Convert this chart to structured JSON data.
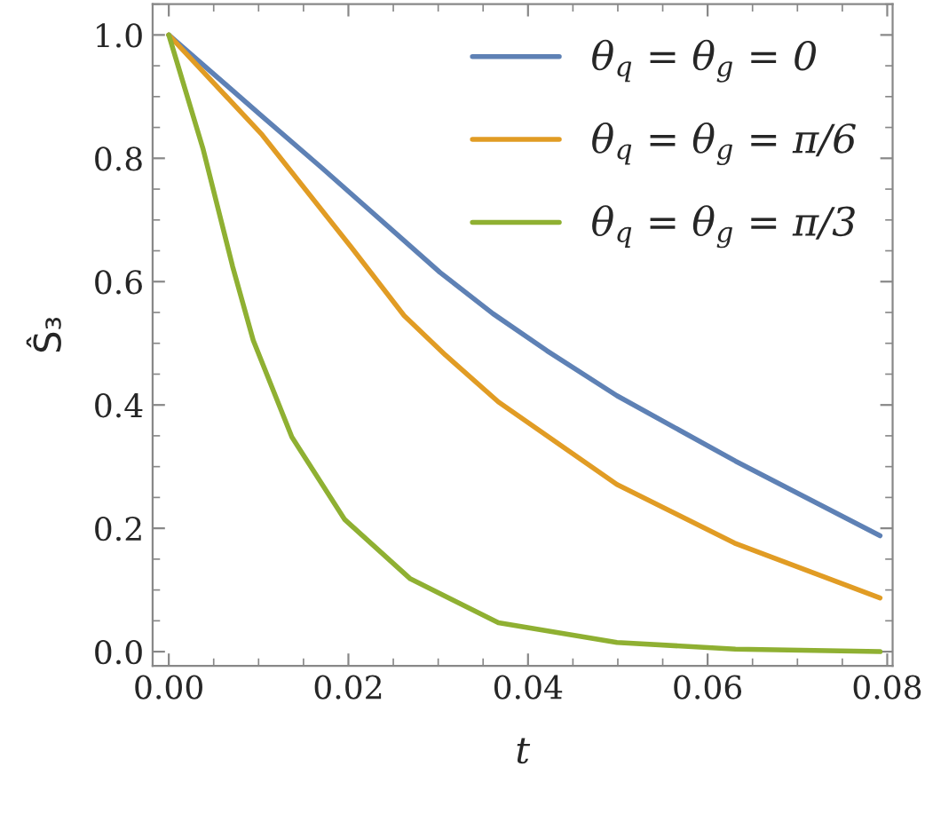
{
  "chart_data": {
    "type": "line",
    "xlabel": "t",
    "ylabel": "Ŝ₃",
    "xlim": [
      -0.0018,
      0.0806
    ],
    "ylim": [
      -0.023,
      1.05
    ],
    "xticks": [
      {
        "value": 0,
        "label": "0.00"
      },
      {
        "value": 0.02,
        "label": "0.02"
      },
      {
        "value": 0.04,
        "label": "0.04"
      },
      {
        "value": 0.06,
        "label": "0.06"
      },
      {
        "value": 0.08,
        "label": "0.08"
      }
    ],
    "yticks": [
      {
        "value": 0,
        "label": "0.0"
      },
      {
        "value": 0.2,
        "label": "0.2"
      },
      {
        "value": 0.4,
        "label": "0.4"
      },
      {
        "value": 0.6,
        "label": "0.6"
      },
      {
        "value": 0.8,
        "label": "0.8"
      },
      {
        "value": 1,
        "label": "1.0"
      }
    ],
    "grid": false,
    "legend": "top right",
    "marker": "none",
    "line_style": "solid",
    "series": [
      {
        "name": "θ$_{q}$ = θ$_{g}$ = 0",
        "color": "#5e81b5",
        "x": [
          0,
          0.0104,
          0.017,
          0.0302,
          0.0361,
          0.0421,
          0.0499,
          0.0631,
          0.0792
        ],
        "values": [
          1,
          0.868,
          0.785,
          0.615,
          0.548,
          0.488,
          0.415,
          0.309,
          0.188
        ]
      },
      {
        "name": "θ$_{q}$ = θ$_{g}$ = π/6",
        "color": "#e19c24",
        "x": [
          0,
          0.0104,
          0.0203,
          0.0262,
          0.0308,
          0.0367,
          0.0499,
          0.063,
          0.0792
        ],
        "values": [
          1,
          0.838,
          0.656,
          0.545,
          0.481,
          0.405,
          0.271,
          0.176,
          0.087
        ]
      },
      {
        "name": "θ$_{q}$ = θ$_{g}$ = π/3",
        "color": "#8fb032",
        "x": [
          0,
          0.0038,
          0.0071,
          0.0094,
          0.0137,
          0.0196,
          0.0269,
          0.0367,
          0.0499,
          0.0631,
          0.0792
        ],
        "values": [
          1,
          0.816,
          0.625,
          0.505,
          0.348,
          0.214,
          0.118,
          0.047,
          0.015,
          0.004,
          0.0
        ]
      }
    ]
  }
}
